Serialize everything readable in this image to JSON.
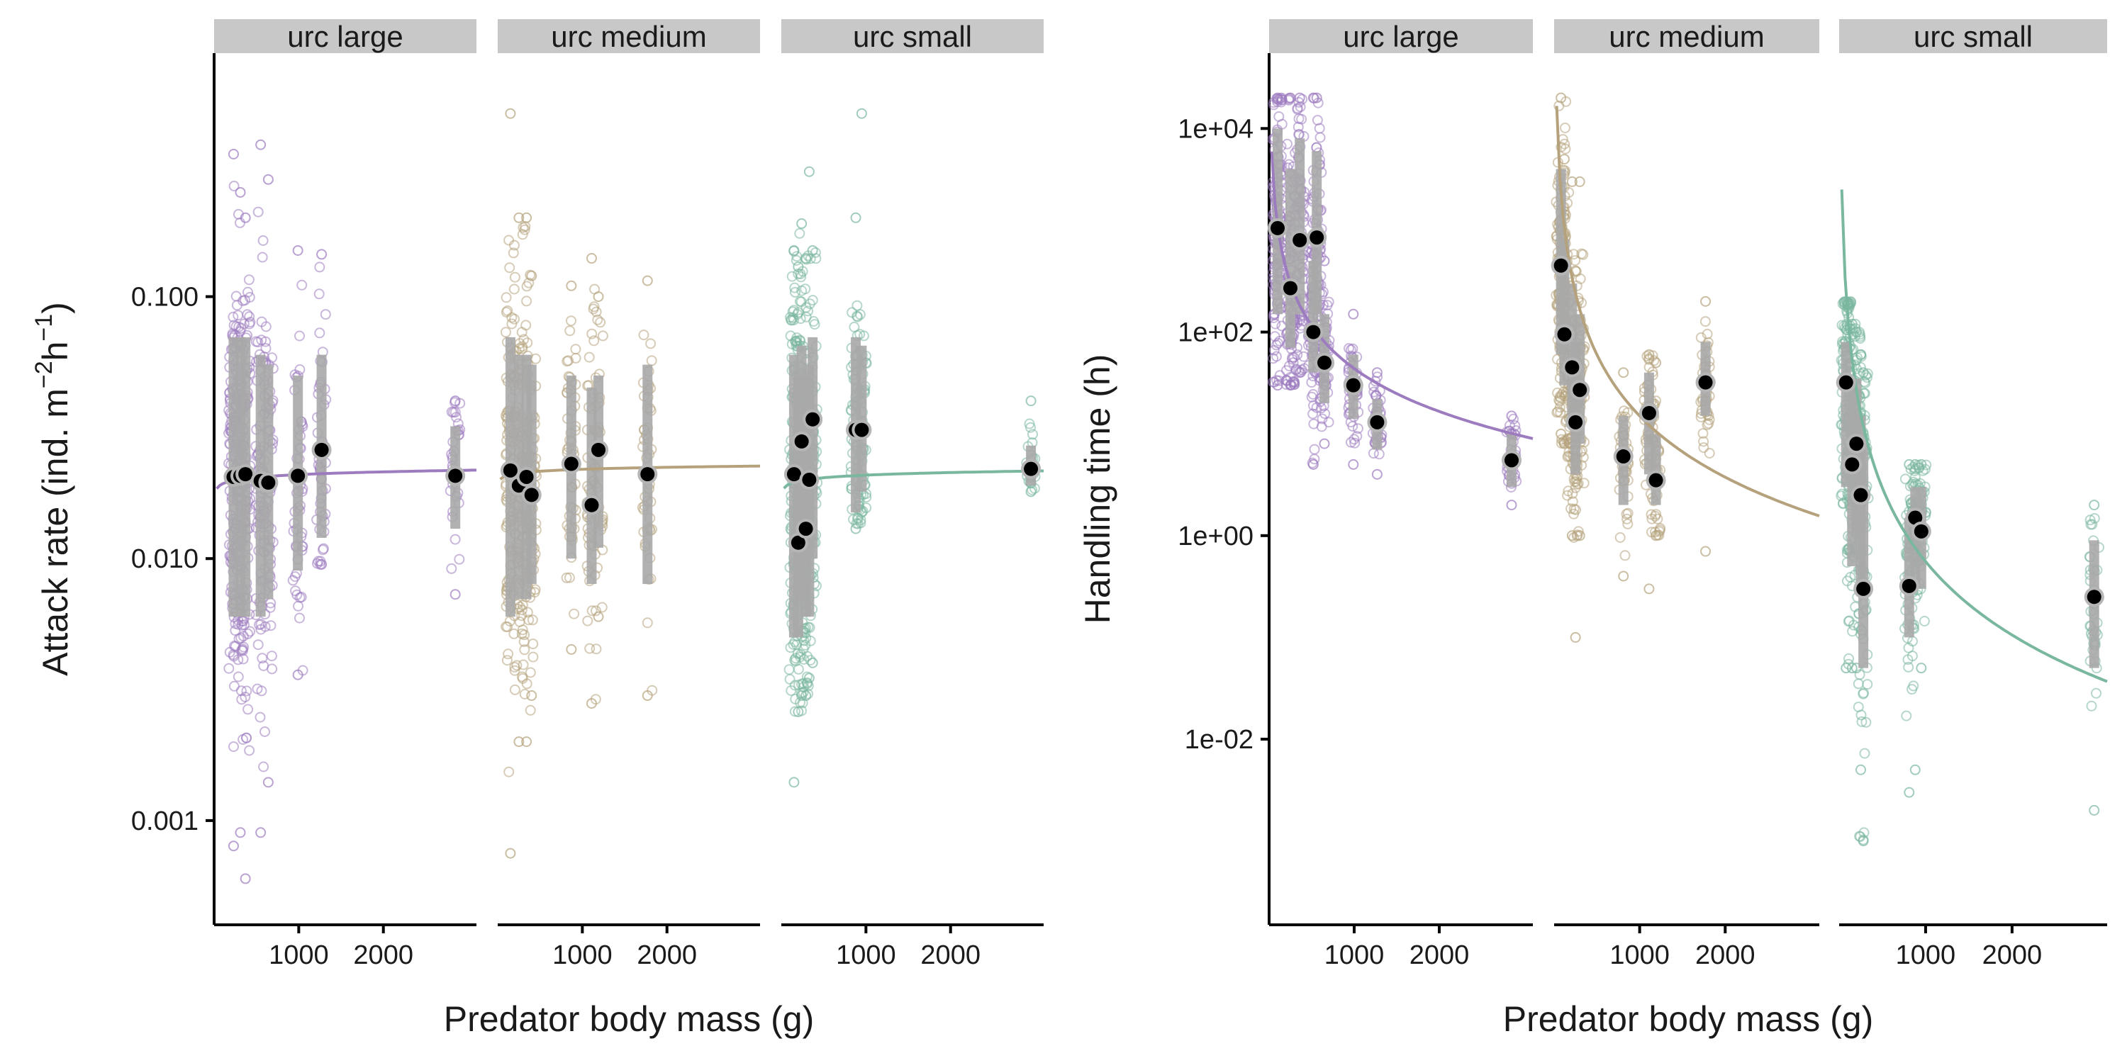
{
  "colors": {
    "urc_large": "#9c7bbf",
    "urc_medium": "#b5a27c",
    "urc_small": "#7ab79f",
    "strip_bg": "#c8c8c8",
    "range_bar": "#a8a8a8",
    "estimate_point": "#000000"
  },
  "chart_data": [
    {
      "type": "scatter",
      "panel": "left",
      "ylabel": {
        "main": "Attack rate (ind. m",
        "sup1": "−2",
        "mid": "h",
        "sup2": "−1",
        "end": ")"
      },
      "xlabel": "Predator body mass (g)",
      "yscale": "log10",
      "ylim": [
        0.0004,
        0.85
      ],
      "xlim": [
        0,
        3100
      ],
      "xticks": [
        1000,
        2000
      ],
      "xtick_labels": [
        "1000",
        "2000"
      ],
      "yticks": [
        0.001,
        0.01,
        0.1
      ],
      "ytick_labels": [
        "0.001",
        "0.010",
        "0.100"
      ],
      "facets": [
        {
          "name": "urc_large",
          "label": "urc  large",
          "fit": {
            "a0": 0.0193,
            "b": 0.035
          },
          "groups": [
            {
              "x": 230,
              "center": 0.0205,
              "q_low": 0.006,
              "q_high": 0.07,
              "min": 0.0008,
              "max": 0.35,
              "n": 130
            },
            {
              "x": 310,
              "center": 0.0207,
              "q_low": 0.006,
              "q_high": 0.07,
              "min": 0.0009,
              "max": 0.25,
              "n": 110
            },
            {
              "x": 370,
              "center": 0.021,
              "q_low": 0.006,
              "q_high": 0.07,
              "min": 0.0006,
              "max": 0.2,
              "n": 100
            },
            {
              "x": 550,
              "center": 0.0198,
              "q_low": 0.006,
              "q_high": 0.06,
              "min": 0.0009,
              "max": 0.38,
              "n": 80
            },
            {
              "x": 640,
              "center": 0.0195,
              "q_low": 0.007,
              "q_high": 0.055,
              "min": 0.0014,
              "max": 0.28,
              "n": 70
            },
            {
              "x": 990,
              "center": 0.0207,
              "q_low": 0.009,
              "q_high": 0.05,
              "min": 0.0036,
              "max": 0.15,
              "n": 50
            },
            {
              "x": 1270,
              "center": 0.026,
              "q_low": 0.012,
              "q_high": 0.06,
              "min": 0.0095,
              "max": 0.145,
              "n": 45
            },
            {
              "x": 2850,
              "center": 0.0207,
              "q_low": 0.013,
              "q_high": 0.032,
              "min": 0.0073,
              "max": 0.04,
              "n": 30
            }
          ]
        },
        {
          "name": "urc_medium",
          "label": "urc  medium",
          "fit": {
            "a0": 0.0207,
            "b": 0.025
          },
          "groups": [
            {
              "x": 150,
              "center": 0.0217,
              "q_low": 0.006,
              "q_high": 0.07,
              "min": 0.00075,
              "max": 0.5,
              "n": 120
            },
            {
              "x": 250,
              "center": 0.019,
              "q_low": 0.007,
              "q_high": 0.06,
              "min": 0.002,
              "max": 0.2,
              "n": 90
            },
            {
              "x": 340,
              "center": 0.0205,
              "q_low": 0.007,
              "q_high": 0.06,
              "min": 0.002,
              "max": 0.2,
              "n": 80
            },
            {
              "x": 400,
              "center": 0.0175,
              "q_low": 0.008,
              "q_high": 0.055,
              "min": 0.003,
              "max": 0.12,
              "n": 70
            },
            {
              "x": 870,
              "center": 0.023,
              "q_low": 0.01,
              "q_high": 0.05,
              "min": 0.0045,
              "max": 0.11,
              "n": 50
            },
            {
              "x": 1110,
              "center": 0.016,
              "q_low": 0.008,
              "q_high": 0.045,
              "min": 0.0028,
              "max": 0.14,
              "n": 45
            },
            {
              "x": 1190,
              "center": 0.026,
              "q_low": 0.011,
              "q_high": 0.05,
              "min": 0.006,
              "max": 0.1,
              "n": 40
            },
            {
              "x": 1770,
              "center": 0.021,
              "q_low": 0.008,
              "q_high": 0.055,
              "min": 0.003,
              "max": 0.115,
              "n": 45
            }
          ]
        },
        {
          "name": "urc_small",
          "label": "urc  small",
          "fit": {
            "a0": 0.0193,
            "b": 0.033
          },
          "groups": [
            {
              "x": 150,
              "center": 0.021,
              "q_low": 0.005,
              "q_high": 0.06,
              "min": 0.0014,
              "max": 0.15,
              "n": 110
            },
            {
              "x": 200,
              "center": 0.0115,
              "q_low": 0.005,
              "q_high": 0.05,
              "min": 0.0026,
              "max": 0.13,
              "n": 70
            },
            {
              "x": 240,
              "center": 0.028,
              "q_low": 0.007,
              "q_high": 0.065,
              "min": 0.003,
              "max": 0.19,
              "n": 70
            },
            {
              "x": 290,
              "center": 0.013,
              "q_low": 0.006,
              "q_high": 0.05,
              "min": 0.003,
              "max": 0.14,
              "n": 60
            },
            {
              "x": 330,
              "center": 0.02,
              "q_low": 0.006,
              "q_high": 0.055,
              "min": 0.0035,
              "max": 0.3,
              "n": 60
            },
            {
              "x": 370,
              "center": 0.034,
              "q_low": 0.01,
              "q_high": 0.07,
              "min": 0.004,
              "max": 0.15,
              "n": 55
            },
            {
              "x": 880,
              "center": 0.031,
              "q_low": 0.015,
              "q_high": 0.07,
              "min": 0.013,
              "max": 0.2,
              "n": 60
            },
            {
              "x": 950,
              "center": 0.031,
              "q_low": 0.018,
              "q_high": 0.065,
              "min": 0.015,
              "max": 0.5,
              "n": 55
            },
            {
              "x": 2950,
              "center": 0.022,
              "q_low": 0.019,
              "q_high": 0.027,
              "min": 0.018,
              "max": 0.04,
              "n": 25
            }
          ]
        }
      ]
    },
    {
      "type": "scatter",
      "panel": "right",
      "ylabel": "Handling time (h)",
      "xlabel": "Predator body mass (g)",
      "yscale": "log10",
      "ylim": [
        0.00015,
        55000
      ],
      "xlim": [
        0,
        3100
      ],
      "xticks": [
        1000,
        2000
      ],
      "xtick_labels": [
        "1000",
        "2000"
      ],
      "yticks": [
        0.01,
        1,
        100,
        10000
      ],
      "ytick_labels": [
        "1e-02",
        "1e+00",
        "1e+02",
        "1e+04"
      ],
      "facets": [
        {
          "name": "urc_large",
          "label": "urc  large",
          "fit": {
            "a0": 1100,
            "b": -1.4
          },
          "groups": [
            {
              "x": 100,
              "center": 1050,
              "q_low": 150,
              "q_high": 10000,
              "min": 30,
              "max": 20000,
              "n": 140
            },
            {
              "x": 250,
              "center": 270,
              "q_low": 70,
              "q_high": 4000,
              "min": 30,
              "max": 20000,
              "n": 100
            },
            {
              "x": 360,
              "center": 800,
              "q_low": 150,
              "q_high": 8000,
              "min": 40,
              "max": 20000,
              "n": 90
            },
            {
              "x": 520,
              "center": 100,
              "q_low": 40,
              "q_high": 500,
              "min": 5,
              "max": 20000,
              "n": 70
            },
            {
              "x": 560,
              "center": 850,
              "q_low": 150,
              "q_high": 6000,
              "min": 40,
              "max": 20000,
              "n": 70
            },
            {
              "x": 650,
              "center": 50,
              "q_low": 20,
              "q_high": 150,
              "min": 8,
              "max": 500,
              "n": 50
            },
            {
              "x": 990,
              "center": 30,
              "q_low": 14,
              "q_high": 60,
              "min": 5,
              "max": 150,
              "n": 45
            },
            {
              "x": 1270,
              "center": 13,
              "q_low": 7,
              "q_high": 22,
              "min": 4,
              "max": 40,
              "n": 35
            },
            {
              "x": 2850,
              "center": 5.5,
              "q_low": 3,
              "q_high": 10,
              "min": 2,
              "max": 15,
              "n": 30
            }
          ]
        },
        {
          "name": "urc_medium",
          "label": "urc  medium",
          "fit": {
            "a0": 1500,
            "b": -2.0
          },
          "groups": [
            {
              "x": 80,
              "center": 450,
              "q_low": 60,
              "q_high": 4000,
              "min": 10,
              "max": 20000,
              "n": 110
            },
            {
              "x": 120,
              "center": 95,
              "q_low": 30,
              "q_high": 800,
              "min": 8,
              "max": 5000,
              "n": 70
            },
            {
              "x": 210,
              "center": 45,
              "q_low": 12,
              "q_high": 300,
              "min": 1,
              "max": 3000,
              "n": 70
            },
            {
              "x": 250,
              "center": 13,
              "q_low": 4,
              "q_high": 80,
              "min": 0.1,
              "max": 400,
              "n": 60
            },
            {
              "x": 300,
              "center": 27,
              "q_low": 8,
              "q_high": 150,
              "min": 1,
              "max": 3000,
              "n": 60
            },
            {
              "x": 810,
              "center": 6,
              "q_low": 2,
              "q_high": 15,
              "min": 0.4,
              "max": 40,
              "n": 45
            },
            {
              "x": 1110,
              "center": 16,
              "q_low": 4,
              "q_high": 40,
              "min": 0.3,
              "max": 60,
              "n": 45
            },
            {
              "x": 1190,
              "center": 3.5,
              "q_low": 2,
              "q_high": 10,
              "min": 1,
              "max": 50,
              "n": 40
            },
            {
              "x": 1770,
              "center": 32,
              "q_low": 15,
              "q_high": 80,
              "min": 0.7,
              "max": 200,
              "n": 45
            }
          ]
        },
        {
          "name": "urc_small",
          "label": "urc  small",
          "fit": {
            "a0": 140,
            "b": -2.4
          },
          "groups": [
            {
              "x": 80,
              "center": 32,
              "q_low": 3,
              "q_high": 80,
              "min": 0.05,
              "max": 200,
              "n": 110
            },
            {
              "x": 150,
              "center": 5,
              "q_low": 0.5,
              "q_high": 30,
              "min": 0.05,
              "max": 120,
              "n": 80
            },
            {
              "x": 200,
              "center": 8,
              "q_low": 1,
              "q_high": 35,
              "min": 0.05,
              "max": 100,
              "n": 70
            },
            {
              "x": 250,
              "center": 2.5,
              "q_low": 0.3,
              "q_high": 15,
              "min": 0.005,
              "max": 60,
              "n": 60
            },
            {
              "x": 280,
              "center": 0.3,
              "q_low": 0.05,
              "q_high": 8,
              "min": 0.001,
              "max": 40,
              "n": 55
            },
            {
              "x": 810,
              "center": 0.32,
              "q_low": 0.1,
              "q_high": 1.5,
              "min": 0.003,
              "max": 5,
              "n": 50
            },
            {
              "x": 880,
              "center": 1.5,
              "q_low": 0.3,
              "q_high": 3,
              "min": 0.005,
              "max": 5,
              "n": 45
            },
            {
              "x": 950,
              "center": 1.1,
              "q_low": 0.3,
              "q_high": 3,
              "min": 0.05,
              "max": 5,
              "n": 45
            },
            {
              "x": 2950,
              "center": 0.25,
              "q_low": 0.05,
              "q_high": 0.9,
              "min": 0.002,
              "max": 2,
              "n": 40
            }
          ]
        }
      ]
    }
  ]
}
